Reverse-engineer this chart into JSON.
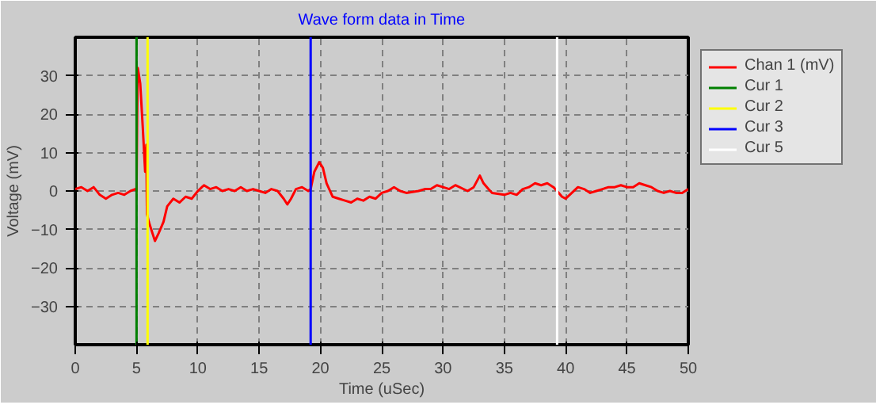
{
  "chart_data": {
    "type": "line",
    "title": "Wave form data in Time",
    "xlabel": "Time (uSec)",
    "ylabel": "Voltage (mV)",
    "xlim": [
      0,
      50
    ],
    "ylim": [
      -40,
      40
    ],
    "xticks": [
      0,
      5,
      10,
      15,
      20,
      25,
      30,
      35,
      40,
      45,
      50
    ],
    "yticks": [
      -30,
      -20,
      -10,
      0,
      10,
      20,
      30
    ],
    "grid": true,
    "legend": "right",
    "series": [
      {
        "name": "Chan 1 (mV)",
        "color": "#ff0000",
        "x": [
          0,
          0.5,
          1,
          1.5,
          2,
          2.5,
          3,
          3.5,
          4,
          4.5,
          4.9,
          5.0,
          5.05,
          5.1,
          5.3,
          5.5,
          5.7,
          5.8,
          5.85,
          6.0,
          6.3,
          6.5,
          6.8,
          7.2,
          7.5,
          8,
          8.5,
          9,
          9.5,
          10,
          10.5,
          11,
          11.5,
          12,
          12.5,
          13,
          13.5,
          14,
          14.5,
          15,
          15.5,
          16,
          16.5,
          17,
          17.3,
          17.6,
          18,
          18.5,
          19,
          19.2,
          19.5,
          19.9,
          20.2,
          20.5,
          21,
          21.5,
          22,
          22.5,
          23,
          23.5,
          24,
          24.5,
          25,
          25.5,
          26,
          26.5,
          27,
          28,
          28.5,
          29,
          29.5,
          30,
          30.5,
          31,
          32,
          32.5,
          33,
          33.3,
          33.7,
          34,
          35,
          35.5,
          36,
          36.5,
          37,
          37.5,
          38,
          38.5,
          39,
          39.3,
          39.7,
          40,
          40.5,
          41,
          41.5,
          42,
          42.5,
          43,
          43.5,
          44,
          44.5,
          45,
          45.5,
          46,
          46.5,
          47,
          47.5,
          48,
          48.5,
          49,
          49.5,
          50
        ],
        "values": [
          0.5,
          1,
          0,
          1,
          -1,
          -2,
          -1,
          -0.5,
          -1,
          0,
          0.5,
          0,
          20,
          32,
          28,
          17,
          5,
          12,
          -6,
          -8,
          -11,
          -13,
          -11,
          -8,
          -4,
          -2,
          -3,
          -1.5,
          -2,
          0,
          1.5,
          0.5,
          1,
          0,
          0.5,
          0,
          1,
          0,
          0.5,
          0,
          -0.5,
          0.5,
          0,
          -2,
          -3.5,
          -2,
          0.5,
          1,
          0,
          0.5,
          5,
          7.5,
          6,
          2,
          -1.5,
          -2,
          -2.5,
          -3,
          -2,
          -2.5,
          -1.5,
          -2,
          -0.5,
          0,
          1,
          0,
          -0.5,
          0,
          0.5,
          0.5,
          1.5,
          1,
          0.5,
          1.5,
          0,
          1,
          4,
          2,
          0.5,
          -0.5,
          -1,
          -0.5,
          -1,
          0.5,
          1,
          2,
          1.5,
          2,
          1,
          0,
          -1.5,
          -2,
          -0.5,
          1,
          0.5,
          -0.5,
          0,
          0.5,
          1,
          1,
          1.5,
          1,
          1,
          2,
          1.5,
          1,
          0,
          -0.5,
          0,
          -0.5,
          -0.5,
          0.5
        ]
      },
      {
        "name": "Cur 1",
        "color": "#008000",
        "x": [
          5,
          5
        ],
        "values": [
          -40,
          40
        ]
      },
      {
        "name": "Cur 2",
        "color": "#ffff00",
        "x": [
          5.9,
          5.9
        ],
        "values": [
          -40,
          40
        ]
      },
      {
        "name": "Cur 3",
        "color": "#0000ff",
        "x": [
          19.2,
          19.2
        ],
        "values": [
          -40,
          40
        ]
      },
      {
        "name": "Cur 5",
        "color": "#ffffff",
        "x": [
          39.3,
          39.3
        ],
        "values": [
          -40,
          40
        ]
      }
    ]
  }
}
